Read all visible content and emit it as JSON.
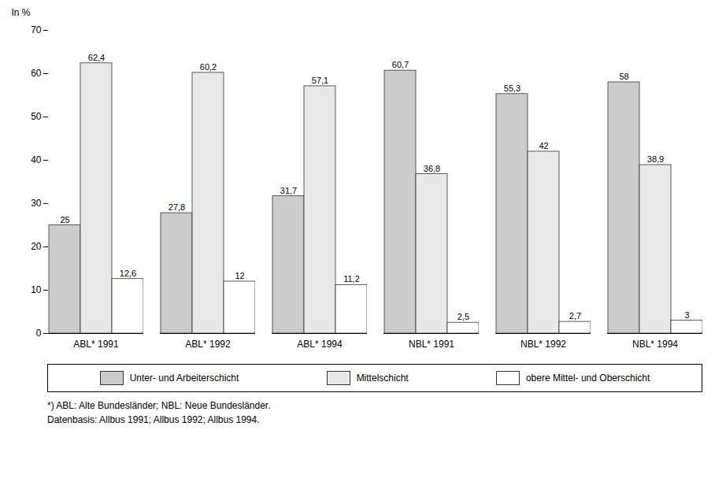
{
  "chart_data": {
    "type": "bar",
    "ylabel": "In %",
    "categories": [
      "ABL* 1991",
      "ABL* 1992",
      "ABL* 1994",
      "NBL* 1991",
      "NBL* 1992",
      "NBL* 1994"
    ],
    "series": [
      {
        "name": "Unter- und Arbeiterschicht",
        "color": "#cccccc",
        "values": [
          25,
          27.8,
          31.7,
          60.7,
          55.3,
          58
        ],
        "value_labels": [
          "25",
          "27,8",
          "31,7",
          "60,7",
          "55,3",
          "58"
        ]
      },
      {
        "name": "Mittelschicht",
        "color": "#e8e8e8",
        "values": [
          62.4,
          60.2,
          57.1,
          36.8,
          42,
          38.9
        ],
        "value_labels": [
          "62,4",
          "60,2",
          "57,1",
          "36,8",
          "42",
          "38,9"
        ]
      },
      {
        "name": "obere Mittel- und Oberschicht",
        "color": "#ffffff",
        "values": [
          12.6,
          12,
          11.2,
          2.5,
          2.7,
          3
        ],
        "value_labels": [
          "12,6",
          "12",
          "11,2",
          "2,5",
          "2,7",
          "3"
        ]
      }
    ],
    "ylim": [
      0,
      70
    ],
    "yticks": [
      0,
      10,
      20,
      30,
      40,
      50,
      60,
      70
    ],
    "grid": false,
    "legend": "bottom",
    "data_labels": true,
    "footnotes": [
      "*) ABL: Alte Bundesländer; NBL: Neue Bundesländer.",
      "Datenbasis: Allbus 1991; Allbus 1992; Allbus 1994."
    ]
  }
}
